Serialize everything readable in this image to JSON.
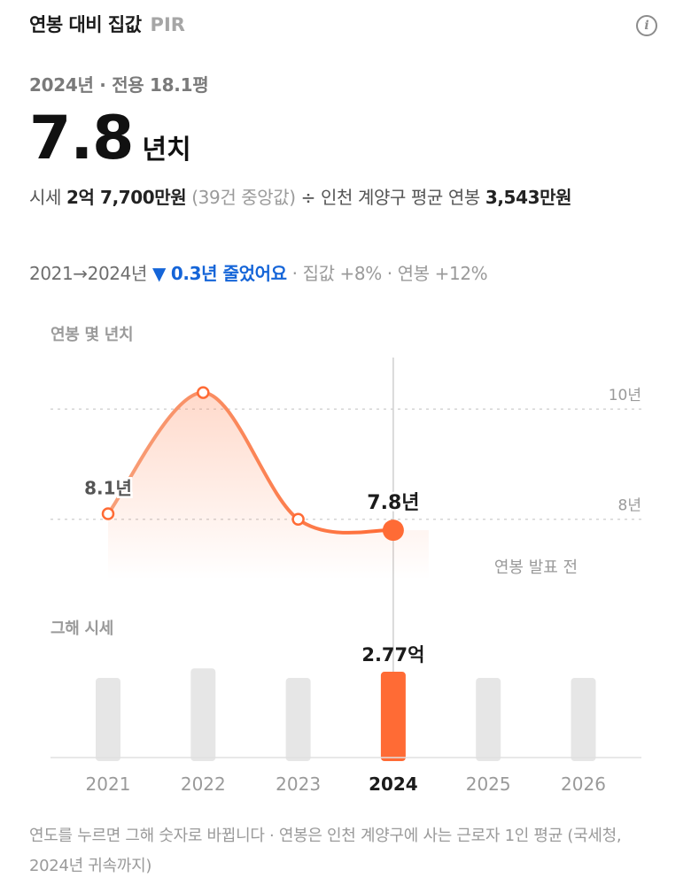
{
  "header": {
    "title": "연봉 대비 집값",
    "subtitle": "PIR",
    "info_icon": "info-icon"
  },
  "meta": "2024년 · 전용 18.1평",
  "pir": {
    "value": "7.8",
    "unit": "년치"
  },
  "formula": {
    "price_label": "시세",
    "price_value": "2억 7,700만원",
    "price_note": "(39건 중앙값)",
    "operator": "÷",
    "income_label": "인천 계양구 평균 연봉",
    "income_value": "3,543만원"
  },
  "change": {
    "period": "2021→2024년",
    "arrow": "▼",
    "summary": "0.3년 줄었어요",
    "details": "· 집값 +8% · 연봉 +12%",
    "arrow_color": "#1565d8"
  },
  "chart_data": [
    {
      "type": "line",
      "title": "연봉 몇 년치",
      "x": [
        "2021",
        "2022",
        "2023",
        "2024"
      ],
      "series": [
        {
          "values": [
            8.1,
            10.3,
            8.0,
            7.8
          ]
        }
      ],
      "point_labels": {
        "2021": "8.1년",
        "2024": "7.8년"
      },
      "y_ticks": [
        {
          "value": 8,
          "label": "8년"
        },
        {
          "value": 10,
          "label": "10년"
        }
      ],
      "ylim": [
        6.18,
        11.45
      ],
      "annotation": "연봉 발표 전",
      "grid": "dashed",
      "color": "#ff6b35"
    },
    {
      "type": "bar",
      "title": "그해 시세",
      "categories": [
        "2021",
        "2022",
        "2023",
        "2024",
        "2025",
        "2026"
      ],
      "values": [
        2.57,
        2.88,
        2.57,
        2.77,
        2.57,
        2.57
      ],
      "unit": "억",
      "selected": "2024",
      "selected_label": "2.77억",
      "ylim": [
        0,
        3.4
      ],
      "selected_color": "#ff6b35",
      "default_color": "#e6e6e6"
    }
  ],
  "footnote": "연도를 누르면 그해 숫자로 바뀝니다 · 연봉은 인천 계양구에 사는 근로자 1인 평균 (국세청, 2024년 귀속까지)"
}
